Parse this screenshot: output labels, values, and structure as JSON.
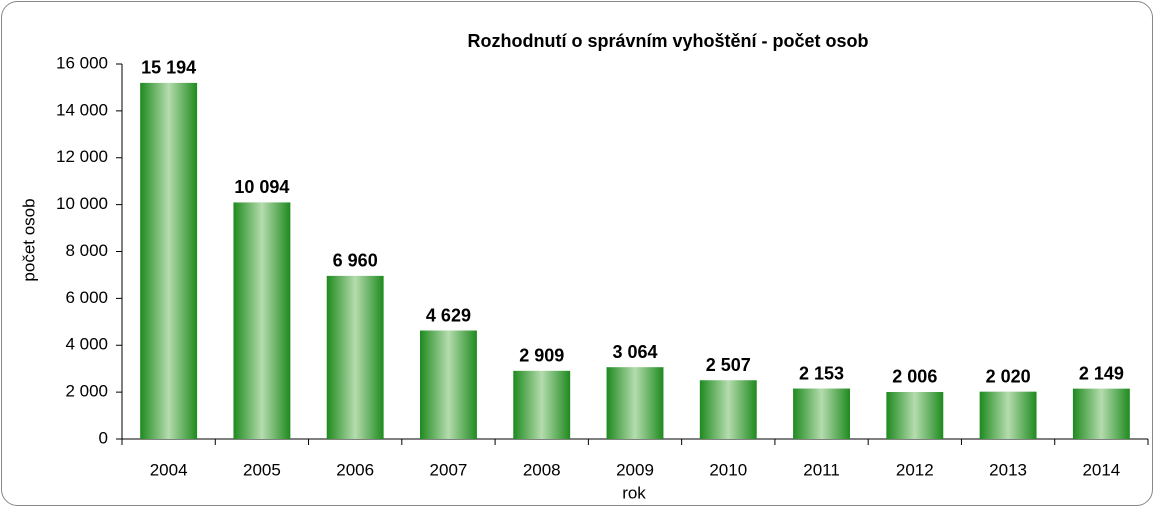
{
  "chart_data": {
    "type": "bar",
    "title": "Rozhodnutí o správním vyhoštění  - počet osob",
    "x_label": "rok",
    "y_label": "počet osob",
    "categories": [
      "2004",
      "2005",
      "2006",
      "2007",
      "2008",
      "2009",
      "2010",
      "2011",
      "2012",
      "2013",
      "2014"
    ],
    "values": [
      15194,
      10094,
      6960,
      4629,
      2909,
      3064,
      2507,
      2153,
      2006,
      2020,
      2149
    ],
    "value_labels": [
      "15 194",
      "10 094",
      "6 960",
      "4 629",
      "2 909",
      "3 064",
      "2 507",
      "2 153",
      "2 006",
      "2 020",
      "2 149"
    ],
    "color": "#1e8a1e",
    "ylim": [
      0,
      16000
    ],
    "yticks": [
      0,
      {
        "value": 2000,
        "label": "2 000"
      },
      {
        "value": 4000,
        "label": "4 000"
      },
      {
        "value": 6000,
        "label": "6 000"
      },
      {
        "value": 8000,
        "label": "8 000"
      },
      {
        "value": 10000,
        "label": "10 000"
      },
      {
        "value": 12000,
        "label": "12 000"
      },
      {
        "value": 14000,
        "label": "14 000"
      },
      {
        "value": 16000,
        "label": "16 000"
      }
    ],
    "grid": false
  }
}
